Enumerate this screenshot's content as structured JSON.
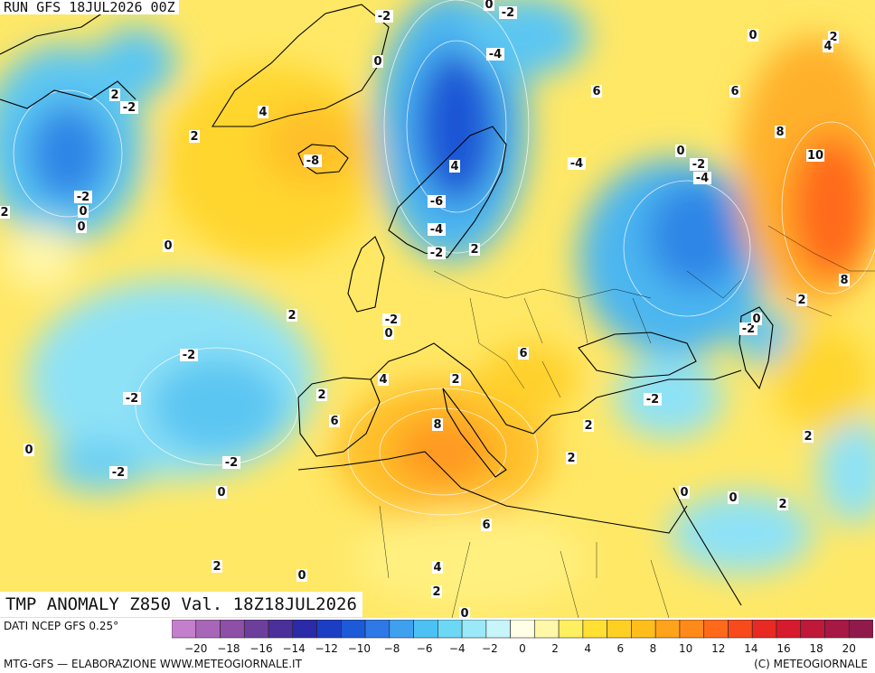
{
  "run_label": "RUN GFS 18JUL2026 00Z",
  "map_title": "TMP ANOMALY Z850 Val. 18Z18JUL2026",
  "data_source": "DATI NCEP GFS 0.25°",
  "credits_left": "MTG-GFS — ELABORAZIONE WWW.METEOGIORNALE.IT",
  "credits_right": "(C) METEOGIORNALE",
  "colors": {
    "bins": [
      "#c47fcc",
      "#a866b8",
      "#8e4fa6",
      "#6d3f9c",
      "#4b2f9a",
      "#2b2aa8",
      "#1b3ec4",
      "#1d5ad8",
      "#2e78e8",
      "#3fa0f0",
      "#4cc2f4",
      "#6dd8f6",
      "#9ae9f8",
      "#c6f5fa",
      "#ffffe6",
      "#fff8a8",
      "#fff060",
      "#ffe033",
      "#ffd024",
      "#ffbe1a",
      "#ffa41a",
      "#ff8a1a",
      "#ff6a1a",
      "#f84a1c",
      "#e82a22",
      "#d81a2e",
      "#c0183a",
      "#a81844",
      "#901a4c"
    ],
    "negative_base": "#5cc6f2",
    "strong_negative": "#2f86e6",
    "deep_negative": "#1c56d6",
    "positive_base": "#ffe44a",
    "strong_positive": "#ffbf2a",
    "hot": "#ff8a22",
    "very_hot": "#ff5a1e",
    "coast": "#000000"
  },
  "map_labels": [
    "-2",
    "0",
    "-2",
    "-4",
    "2",
    "0",
    "0",
    "-2",
    "4",
    "2",
    "4",
    "6",
    "2",
    "6",
    "-8",
    "4",
    "-4",
    "-2",
    "0",
    "10",
    "-2",
    "8",
    "0",
    "-4",
    "-6",
    "2",
    "-4",
    "-2",
    "2",
    "8",
    "0",
    "-2",
    "0",
    "2",
    "0",
    "2",
    "-2",
    "0",
    "-2",
    "4",
    "6",
    "-2",
    "2",
    "2",
    "6",
    "-2",
    "8",
    "2",
    "2",
    "0",
    "-2",
    "2",
    "-2",
    "0",
    "0",
    "6",
    "0",
    "2",
    "0",
    "4",
    "2",
    "2",
    "0"
  ],
  "scale": {
    "ticks": [
      "−20",
      "−18",
      "−16",
      "−14",
      "−12",
      "−10",
      "−8",
      "−6",
      "−4",
      "−2",
      "0",
      "2",
      "4",
      "6",
      "8",
      "10",
      "12",
      "14",
      "16",
      "18",
      "20"
    ]
  }
}
